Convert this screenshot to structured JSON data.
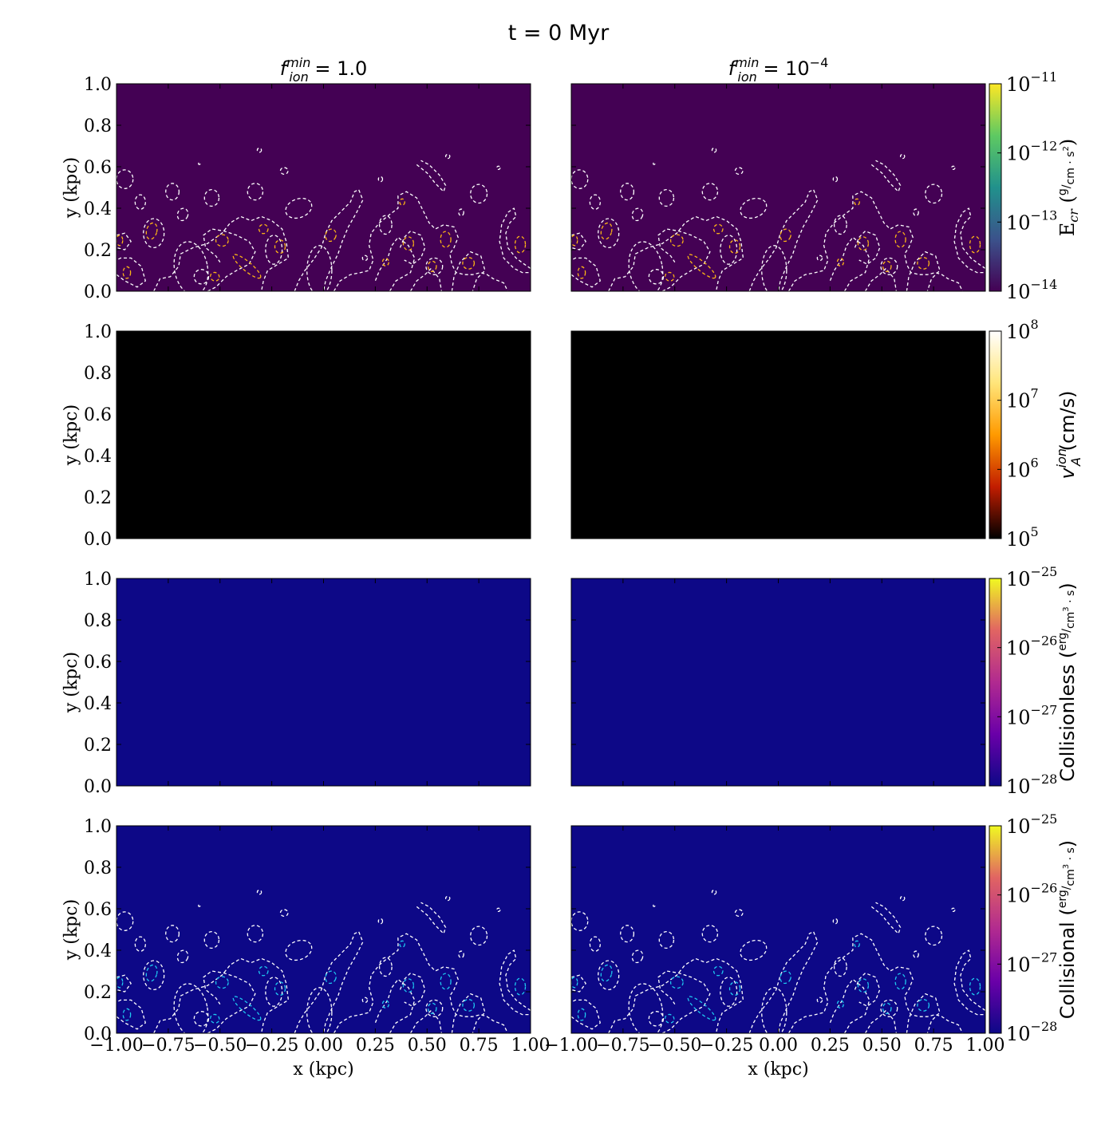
{
  "title": "t =   0 Myr",
  "columns": [
    {
      "label_base": "f",
      "label_sup": "min",
      "label_sub": "ion",
      "label_rhs": "= 1.0",
      "label_rhs_sup": ""
    },
    {
      "label_base": "f",
      "label_sup": "min",
      "label_sub": "ion",
      "label_rhs": "= 10",
      "label_rhs_sup": "−4"
    }
  ],
  "chart_data": {
    "type": "heatmap",
    "xlabel": "x (kpc)",
    "ylabel": "y (kpc)",
    "xlim": [
      -1.0,
      1.0
    ],
    "ylim": [
      0.0,
      1.0
    ],
    "xticks": [
      "−1.00",
      "−0.75",
      "−0.50",
      "−0.25",
      "0.00",
      "0.25",
      "0.50",
      "0.75",
      "1.00"
    ],
    "xtick_values": [
      -1.0,
      -0.75,
      -0.5,
      -0.25,
      0.0,
      0.25,
      0.5,
      0.75,
      1.0
    ],
    "yticks": [
      "0.0",
      "0.2",
      "0.4",
      "0.6",
      "0.8",
      "1.0"
    ],
    "ytick_values": [
      0.0,
      0.2,
      0.4,
      0.6,
      0.8,
      1.0
    ],
    "rows": [
      {
        "quantity": "E_cr",
        "fill_color": "#440154",
        "inner_contour_color": "#fdb515",
        "contours": true,
        "colorbar": {
          "label_main": "E",
          "label_sub": "cr",
          "unit_num": "g",
          "unit_den": "cm · s",
          "unit_den_sup": "2",
          "scale": "log",
          "ticks": [
            {
              "base": "10",
              "exp": "−11"
            },
            {
              "base": "10",
              "exp": "−12"
            },
            {
              "base": "10",
              "exp": "−13"
            },
            {
              "base": "10",
              "exp": "−14"
            }
          ],
          "stops": [
            "#fde725",
            "#5ec962",
            "#21918c",
            "#3b528b",
            "#440154"
          ]
        }
      },
      {
        "quantity": "v_A^ion",
        "fill_color": "#000000",
        "inner_contour_color": "",
        "contours": false,
        "colorbar": {
          "label_main": "v",
          "label_sub": "A",
          "label_sup": "ion",
          "unit_plain": "(cm/s)",
          "scale": "log",
          "ticks": [
            {
              "base": "10",
              "exp": "8"
            },
            {
              "base": "10",
              "exp": "7"
            },
            {
              "base": "10",
              "exp": "6"
            },
            {
              "base": "10",
              "exp": "5"
            }
          ],
          "stops": [
            "#ffffff",
            "#ffe57a",
            "#ff9a00",
            "#c21d00",
            "#000000"
          ]
        }
      },
      {
        "quantity": "Collisionless",
        "fill_color": "#0d0887",
        "inner_contour_color": "",
        "contours": false,
        "colorbar": {
          "label_main": "Collisionless",
          "unit_num": "erg",
          "unit_den": "cm",
          "unit_den_sup": "3",
          "unit_den_post": " · s",
          "scale": "log",
          "ticks": [
            {
              "base": "10",
              "exp": "−25"
            },
            {
              "base": "10",
              "exp": "−26"
            },
            {
              "base": "10",
              "exp": "−27"
            },
            {
              "base": "10",
              "exp": "−28"
            }
          ],
          "stops": [
            "#f0f921",
            "#e16462",
            "#b12a90",
            "#6a00a8",
            "#0d0887"
          ]
        }
      },
      {
        "quantity": "Collisional",
        "fill_color": "#0d0887",
        "inner_contour_color": "#1ec8f0",
        "contours": true,
        "colorbar": {
          "label_main": "Collisional",
          "unit_num": "erg",
          "unit_den": "cm",
          "unit_den_sup": "3",
          "unit_den_post": " · s",
          "scale": "log",
          "ticks": [
            {
              "base": "10",
              "exp": "−25"
            },
            {
              "base": "10",
              "exp": "−26"
            },
            {
              "base": "10",
              "exp": "−27"
            },
            {
              "base": "10",
              "exp": "−28"
            }
          ],
          "stops": [
            "#f0f921",
            "#e16462",
            "#b12a90",
            "#6a00a8",
            "#0d0887"
          ]
        }
      }
    ],
    "contour_style": "dashed",
    "outer_contour_color": "#ffffff"
  }
}
